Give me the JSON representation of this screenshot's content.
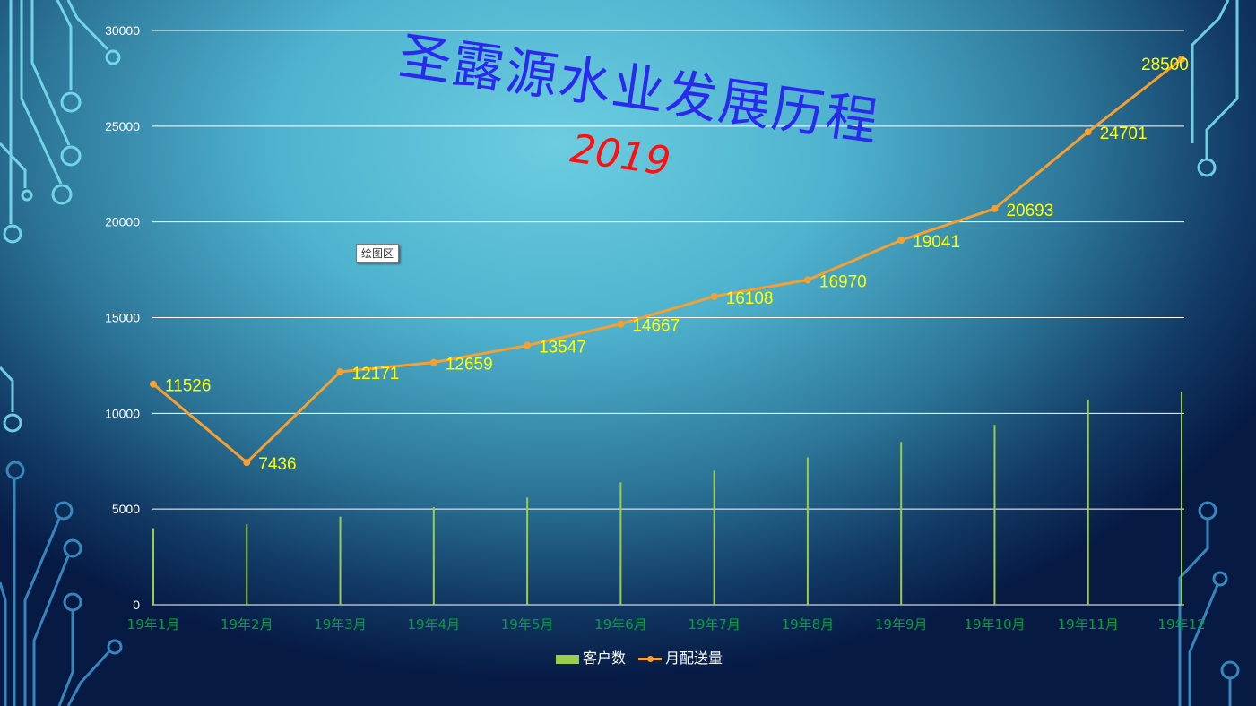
{
  "slide": {
    "title": "圣露源水业发展历程",
    "year": "2019",
    "tooltip": "绘图区"
  },
  "colors": {
    "bar": "#9acd4a",
    "line": "#f5a030",
    "data_label": "#ffff00",
    "x_tick": "#00a040",
    "y_tick": "#ffffff",
    "gridline": "#ffffff"
  },
  "chart_data": {
    "type": "bar+line",
    "categories": [
      "19年1月",
      "19年2月",
      "19年3月",
      "19年4月",
      "19年5月",
      "19年6月",
      "19年7月",
      "19年8月",
      "19年9月",
      "19年10月",
      "19年11月",
      "19年12"
    ],
    "series": [
      {
        "name": "客户数",
        "type": "bar",
        "values": [
          4000,
          4200,
          4600,
          5100,
          5600,
          6400,
          7000,
          7700,
          8500,
          9400,
          10700,
          11100
        ]
      },
      {
        "name": "月配送量",
        "type": "line",
        "values": [
          11526,
          7436,
          12171,
          12659,
          13547,
          14667,
          16108,
          16970,
          19041,
          20693,
          24701,
          28500
        ],
        "data_labels": true
      }
    ],
    "ylim": [
      0,
      30000
    ],
    "yticks": [
      0,
      5000,
      10000,
      15000,
      20000,
      25000,
      30000
    ],
    "grid": true,
    "legend": "bottom"
  }
}
